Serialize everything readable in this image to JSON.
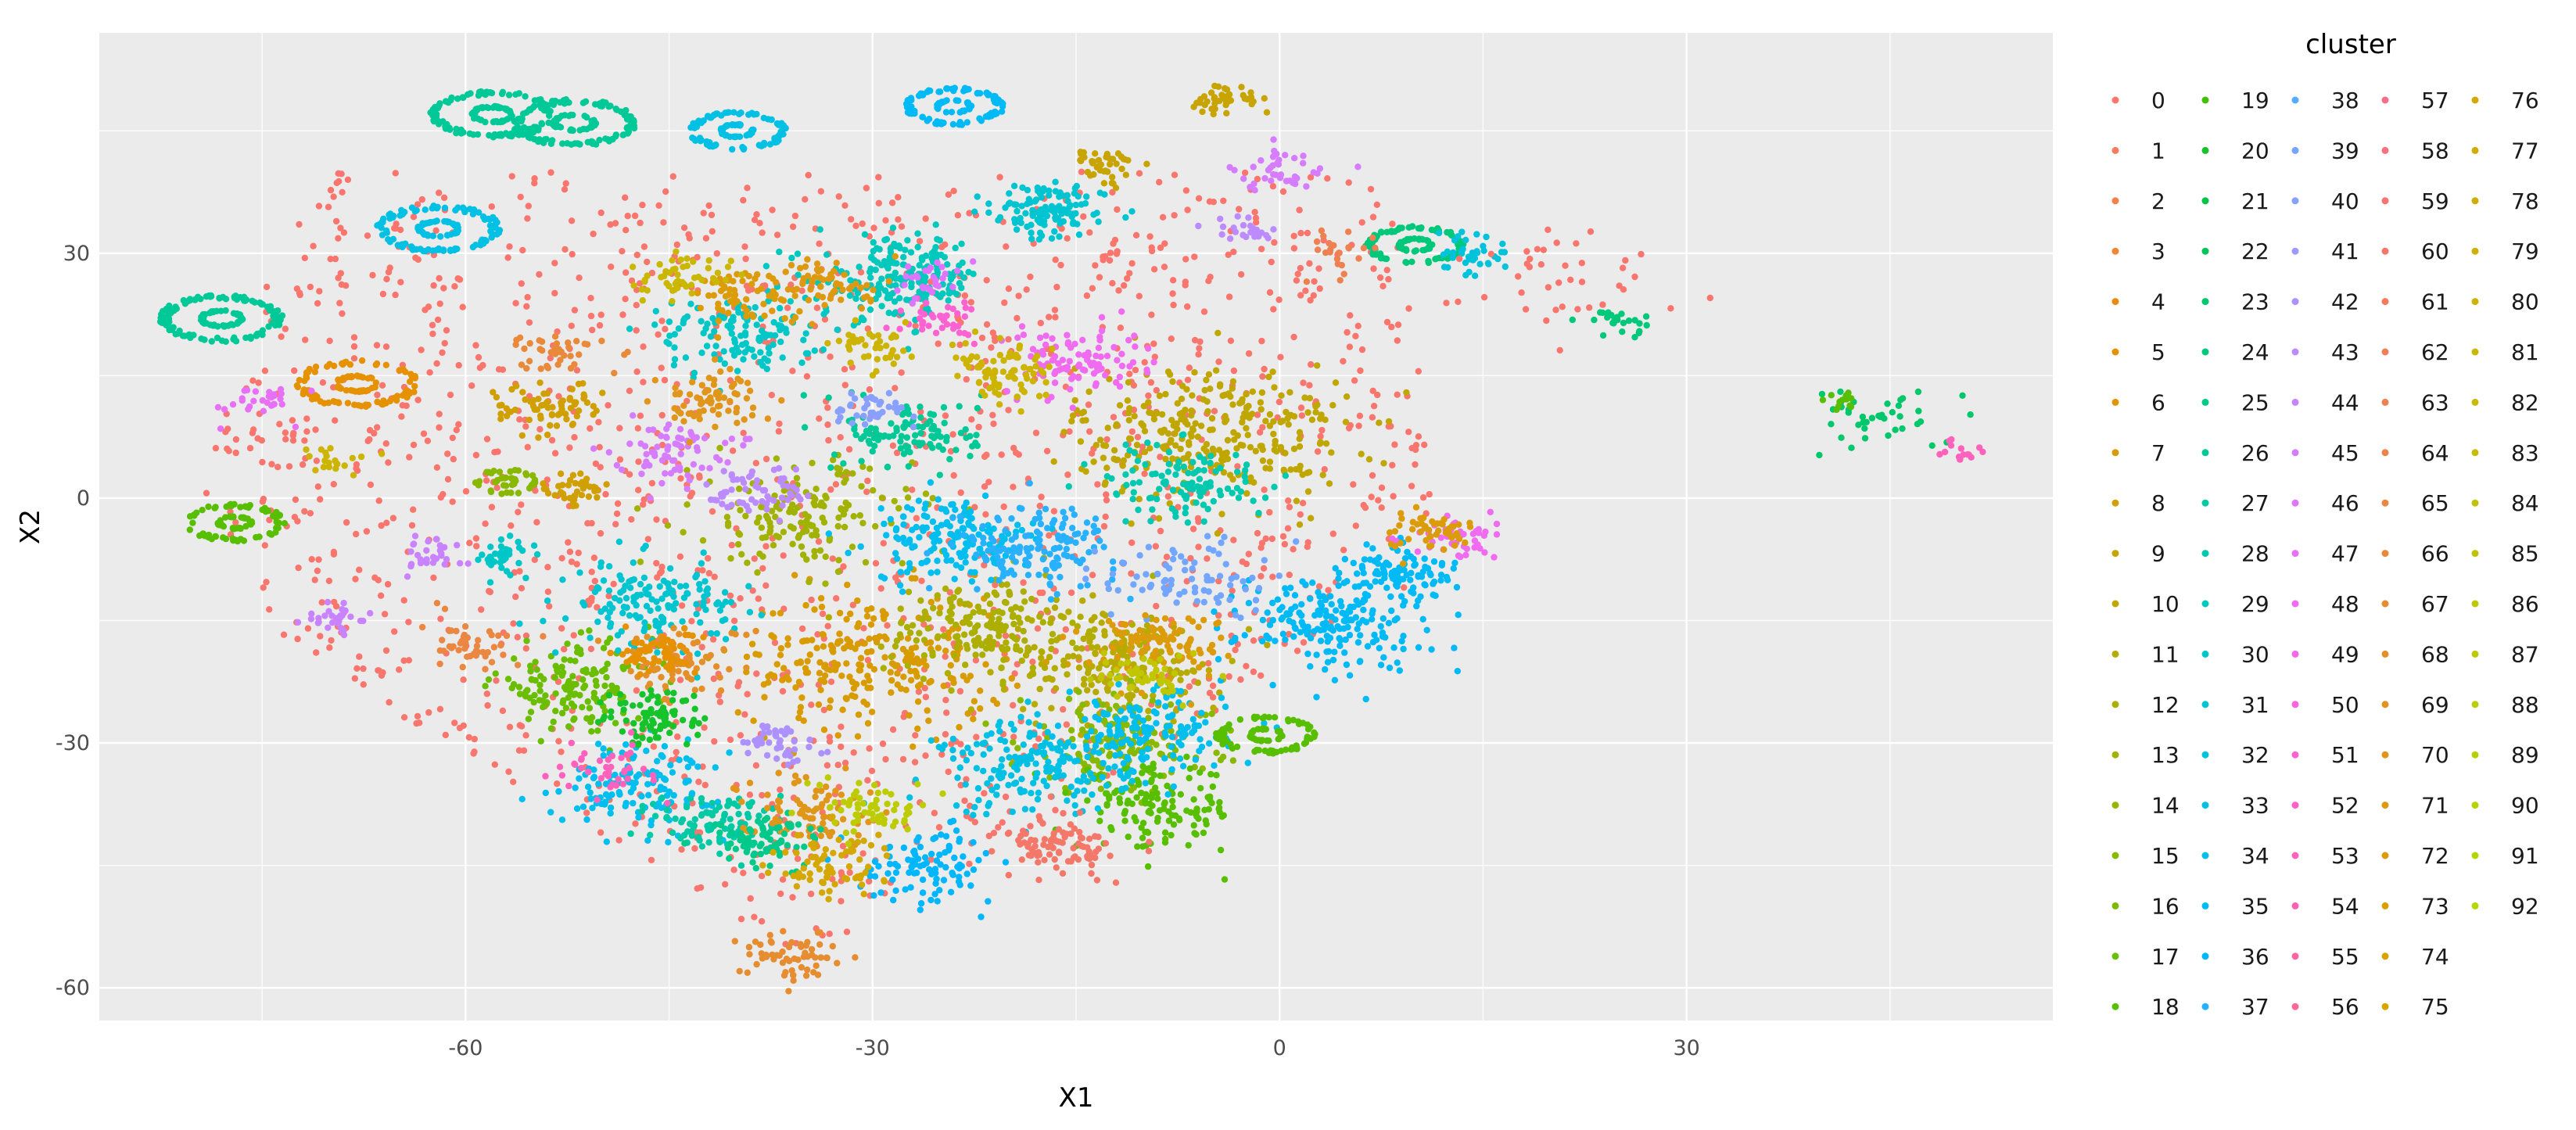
{
  "chart_data": {
    "type": "scatter",
    "title": "",
    "xlabel": "X1",
    "ylabel": "X2",
    "xlim": [
      -87,
      57
    ],
    "ylim": [
      -64,
      57
    ],
    "x_ticks": [
      -60,
      -30,
      0,
      30
    ],
    "x_tick_labels": [
      "-60",
      "-30",
      "0",
      "30"
    ],
    "y_ticks": [
      -60,
      -30,
      0,
      30
    ],
    "y_tick_labels": [
      "-60",
      "-30",
      "0",
      "30"
    ],
    "grid": true,
    "background": "#ebebeb",
    "grid_color": "#ffffff",
    "legend": {
      "title": "cluster",
      "placement": "right",
      "columns": 5,
      "entries": [
        "0",
        "1",
        "2",
        "3",
        "4",
        "5",
        "6",
        "7",
        "8",
        "9",
        "10",
        "11",
        "12",
        "13",
        "14",
        "15",
        "16",
        "17",
        "18",
        "19",
        "20",
        "21",
        "22",
        "23",
        "24",
        "25",
        "26",
        "27",
        "28",
        "29",
        "30",
        "31",
        "32",
        "33",
        "34",
        "35",
        "36",
        "37",
        "38",
        "39",
        "40",
        "41",
        "42",
        "43",
        "44",
        "45",
        "46",
        "47",
        "48",
        "49",
        "50",
        "51",
        "52",
        "53",
        "54",
        "55",
        "56",
        "57",
        "58",
        "59",
        "60",
        "61",
        "62",
        "63",
        "64",
        "65",
        "66",
        "67",
        "68",
        "69",
        "70",
        "71",
        "72",
        "73",
        "74",
        "75",
        "76",
        "77",
        "78",
        "79",
        "80",
        "81",
        "82",
        "83",
        "84",
        "85",
        "86",
        "87",
        "88",
        "89",
        "90",
        "91",
        "92"
      ],
      "colors": [
        "#F8766D",
        "#F67C5E",
        "#F3814C",
        "#EF8735",
        "#EA8C0F",
        "#E59100",
        "#DF9600",
        "#D89B00",
        "#D09F00",
        "#C8A400",
        "#BFA700",
        "#B6AB00",
        "#ACAE00",
        "#A1B200",
        "#96B500",
        "#89B800",
        "#7BBA00",
        "#6BBD00",
        "#58BF00",
        "#40C100",
        "#16C32B",
        "#00C546",
        "#00C65A",
        "#00C76B",
        "#00C87B",
        "#00C989",
        "#00C997",
        "#00C9A4",
        "#00C9B0",
        "#00C8BC",
        "#00C7C7",
        "#00C5D1",
        "#00C3DB",
        "#00C1E4",
        "#00BEED",
        "#00BAF5",
        "#00B6FC",
        "#28B1FF",
        "#55ACFF",
        "#72A6FF",
        "#89A0FF",
        "#9C99FF",
        "#AD92FF",
        "#BC8BFF",
        "#C983FF",
        "#D57CFF",
        "#DF75FD",
        "#E870F6",
        "#EF6BEF",
        "#F567E6",
        "#FA64DD",
        "#FD62D2",
        "#FF61C7",
        "#FF62BC",
        "#FF63B0",
        "#FE66A3",
        "#FB6996",
        "#F96D89",
        "#F8717C",
        "#F67572",
        "#F4786A",
        "#F27B62",
        "#F07E5A",
        "#EE8152",
        "#EC844A",
        "#EA8742",
        "#E88A3A",
        "#E68D32",
        "#E4902A",
        "#E29322",
        "#E0961A",
        "#DE9912",
        "#DC9C0A",
        "#DA9F02",
        "#D8A200",
        "#D6A500",
        "#D4A800",
        "#D2AB00",
        "#D0AE00",
        "#CEB100",
        "#CCB400",
        "#CAB700",
        "#C8BA00",
        "#C6BD00",
        "#C4C000",
        "#C2C300",
        "#C0C600",
        "#BEC900",
        "#BCCC00",
        "#BACF00",
        "#B8D200",
        "#B6D500",
        "#B4D800"
      ]
    },
    "clusters": [
      {
        "cluster": 0,
        "cx": -20,
        "cy": 0,
        "spread": 26,
        "n": 1500,
        "ring": false
      },
      {
        "cluster": 7,
        "cx": -30,
        "cy": -20,
        "spread": 5,
        "n": 260,
        "ring": false
      },
      {
        "cluster": 10,
        "cx": -5,
        "cy": 8,
        "spread": 5,
        "n": 300,
        "ring": false
      },
      {
        "cluster": 11,
        "cx": -12,
        "cy": -20,
        "spread": 4,
        "n": 200,
        "ring": false
      },
      {
        "cluster": 12,
        "cx": -22,
        "cy": -16,
        "spread": 3.5,
        "n": 170,
        "ring": false
      },
      {
        "cluster": 13,
        "cx": -35,
        "cy": -2,
        "spread": 4,
        "n": 160,
        "ring": false
      },
      {
        "cluster": 15,
        "cx": -12,
        "cy": -30,
        "spread": 3.5,
        "n": 160,
        "ring": false
      },
      {
        "cluster": 17,
        "cx": -52,
        "cy": -23,
        "spread": 3,
        "n": 140,
        "ring": false
      },
      {
        "cluster": 18,
        "cx": -9,
        "cy": -38,
        "spread": 3,
        "n": 140,
        "ring": false
      },
      {
        "cluster": 29,
        "cx": -28,
        "cy": 27,
        "spread": 3,
        "n": 200,
        "ring": false
      },
      {
        "cluster": 31,
        "cx": -46,
        "cy": -13,
        "spread": 3,
        "n": 150,
        "ring": false
      },
      {
        "cluster": 35,
        "cx": 4,
        "cy": -15,
        "spread": 3.5,
        "n": 200,
        "ring": false
      },
      {
        "cluster": 35,
        "cx": 9,
        "cy": -9,
        "spread": 2,
        "n": 90,
        "ring": false
      },
      {
        "cluster": 33,
        "cx": -18,
        "cy": -33,
        "spread": 3.5,
        "n": 180,
        "ring": false
      },
      {
        "cluster": 34,
        "cx": -10,
        "cy": -29,
        "spread": 3,
        "n": 140,
        "ring": false
      },
      {
        "cluster": 34,
        "cx": -24,
        "cy": -5,
        "spread": 3,
        "n": 160,
        "ring": false
      },
      {
        "cluster": 37,
        "cx": -18,
        "cy": -6,
        "spread": 3,
        "n": 140,
        "ring": false
      },
      {
        "cluster": 36,
        "cx": -26,
        "cy": -45,
        "spread": 2.5,
        "n": 100,
        "ring": false
      },
      {
        "cluster": 34,
        "cx": -47,
        "cy": -35,
        "spread": 3,
        "n": 140,
        "ring": false
      },
      {
        "cluster": 30,
        "cx": -40,
        "cy": 20,
        "spread": 3,
        "n": 130,
        "ring": false
      },
      {
        "cluster": 48,
        "cx": -15,
        "cy": 17,
        "spread": 2.5,
        "n": 100,
        "ring": false
      },
      {
        "cluster": 48,
        "cx": 13,
        "cy": -5,
        "spread": 1.5,
        "n": 50,
        "ring": false
      },
      {
        "cluster": 26,
        "cx": -27,
        "cy": 8,
        "spread": 2.5,
        "n": 110,
        "ring": false
      },
      {
        "cluster": 27,
        "cx": -41,
        "cy": -40,
        "spread": 2.5,
        "n": 100,
        "ring": false
      },
      {
        "cluster": 28,
        "cx": -7,
        "cy": 2,
        "spread": 3,
        "n": 110,
        "ring": false
      },
      {
        "cluster": 39,
        "cx": -7,
        "cy": -10,
        "spread": 3,
        "n": 80,
        "ring": false
      },
      {
        "cluster": 45,
        "cx": -45,
        "cy": 6,
        "spread": 2,
        "n": 70,
        "ring": false
      },
      {
        "cluster": 70,
        "cx": -35,
        "cy": -38,
        "spread": 2.5,
        "n": 80,
        "ring": false
      },
      {
        "cluster": 70,
        "cx": -42,
        "cy": 12,
        "spread": 2,
        "n": 70,
        "ring": false
      },
      {
        "cluster": 72,
        "cx": -40,
        "cy": 25,
        "spread": 2,
        "n": 60,
        "ring": false
      },
      {
        "cluster": 72,
        "cx": -9,
        "cy": -18,
        "spread": 2.5,
        "n": 100,
        "ring": false
      },
      {
        "cluster": 68,
        "cx": -44,
        "cy": -20,
        "spread": 2.5,
        "n": 70,
        "ring": false
      },
      {
        "cluster": 25,
        "cx": -38,
        "cy": -42,
        "spread": 2,
        "n": 70,
        "ring": false
      },
      {
        "cluster": 20,
        "cx": -46,
        "cy": -27,
        "spread": 2,
        "n": 80,
        "ring": false
      },
      {
        "cluster": 8,
        "cx": -54,
        "cy": 11,
        "spread": 2,
        "n": 70,
        "ring": false
      },
      {
        "cluster": 5,
        "cx": -46,
        "cy": -19,
        "spread": 1.5,
        "n": 60,
        "ring": false
      },
      {
        "cluster": 43,
        "cx": -38,
        "cy": 1,
        "spread": 2,
        "n": 60,
        "ring": false
      },
      {
        "cluster": 71,
        "cx": -33,
        "cy": 26,
        "spread": 2,
        "n": 60,
        "ring": false
      },
      {
        "cluster": 76,
        "cx": -33,
        "cy": -45,
        "spread": 2.5,
        "n": 70,
        "ring": false
      },
      {
        "cluster": 88,
        "cx": -30,
        "cy": -38,
        "spread": 2,
        "n": 60,
        "ring": false
      },
      {
        "cluster": 60,
        "cx": -16,
        "cy": -43,
        "spread": 2,
        "n": 90,
        "ring": false
      },
      {
        "cluster": 42,
        "cx": -37,
        "cy": -30,
        "spread": 1.5,
        "n": 45,
        "ring": false
      },
      {
        "cluster": 65,
        "cx": -60,
        "cy": -18,
        "spread": 1.8,
        "n": 45,
        "ring": false
      },
      {
        "cluster": 66,
        "cx": -53,
        "cy": 18,
        "spread": 1.5,
        "n": 40,
        "ring": false
      },
      {
        "cluster": 67,
        "cx": -36,
        "cy": -56,
        "spread": 1.8,
        "n": 60,
        "ring": false
      },
      {
        "cluster": 51,
        "cx": -25,
        "cy": 22,
        "spread": 1.5,
        "n": 40,
        "ring": false
      },
      {
        "cluster": 53,
        "cx": -50,
        "cy": -33,
        "spread": 1.8,
        "n": 40,
        "ring": false
      },
      {
        "cluster": 80,
        "cx": -20,
        "cy": 15,
        "spread": 2,
        "n": 80,
        "ring": false
      },
      {
        "cluster": 80,
        "cx": -30,
        "cy": 18,
        "spread": 1.5,
        "n": 40,
        "ring": false
      },
      {
        "cluster": 81,
        "cx": -44,
        "cy": 27,
        "spread": 1.8,
        "n": 50,
        "ring": false
      },
      {
        "cluster": 40,
        "cx": -30,
        "cy": 11,
        "spread": 1.5,
        "n": 40,
        "ring": false
      },
      {
        "cluster": 46,
        "cx": -26,
        "cy": 27,
        "spread": 1.2,
        "n": 30,
        "ring": false
      },
      {
        "cluster": 44,
        "cx": -70,
        "cy": -15,
        "spread": 1.2,
        "n": 30,
        "ring": false
      },
      {
        "cluster": 44,
        "cx": -62,
        "cy": -7,
        "spread": 1.2,
        "n": 30,
        "ring": false
      },
      {
        "cluster": 86,
        "cx": -10,
        "cy": -22,
        "spread": 1.8,
        "n": 50,
        "ring": false
      },
      {
        "cluster": 24,
        "cx": 10,
        "cy": 31,
        "spread": 2,
        "n": 110,
        "ring": true
      },
      {
        "cluster": 30,
        "cx": -57,
        "cy": -7,
        "spread": 1.2,
        "n": 40,
        "ring": false
      },
      {
        "cluster": 26,
        "cx": -58,
        "cy": 47,
        "spread": 2.5,
        "n": 160,
        "ring": true
      },
      {
        "cluster": 26,
        "cx": -52,
        "cy": 46,
        "spread": 2.5,
        "n": 160,
        "ring": true
      },
      {
        "cluster": 26,
        "cx": -78,
        "cy": 22,
        "spread": 2.5,
        "n": 160,
        "ring": true
      },
      {
        "cluster": 33,
        "cx": -62,
        "cy": 33,
        "spread": 2.5,
        "n": 150,
        "ring": true
      },
      {
        "cluster": 33,
        "cx": -40,
        "cy": 45,
        "spread": 2,
        "n": 120,
        "ring": true
      },
      {
        "cluster": 35,
        "cx": -24,
        "cy": 48,
        "spread": 2,
        "n": 120,
        "ring": true
      },
      {
        "cluster": 31,
        "cx": -17,
        "cy": 35,
        "spread": 2,
        "n": 120,
        "ring": false
      },
      {
        "cluster": 5,
        "cx": -68,
        "cy": 14,
        "spread": 2.5,
        "n": 120,
        "ring": true
      },
      {
        "cluster": 9,
        "cx": -13,
        "cy": 41,
        "spread": 1.2,
        "n": 40,
        "ring": false
      },
      {
        "cluster": 9,
        "cx": -4,
        "cy": 49,
        "spread": 1.2,
        "n": 40,
        "ring": false
      },
      {
        "cluster": 15,
        "cx": -57,
        "cy": 2,
        "spread": 1.3,
        "n": 50,
        "ring": true
      },
      {
        "cluster": 8,
        "cx": -52,
        "cy": 1,
        "spread": 1.2,
        "n": 40,
        "ring": false
      },
      {
        "cluster": 18,
        "cx": -77,
        "cy": -3,
        "spread": 2,
        "n": 100,
        "ring": true
      },
      {
        "cluster": 18,
        "cx": -1,
        "cy": -29,
        "spread": 2,
        "n": 100,
        "ring": true
      },
      {
        "cluster": 32,
        "cx": 14,
        "cy": 30,
        "spread": 1.5,
        "n": 40,
        "ring": false
      },
      {
        "cluster": 45,
        "cx": 0,
        "cy": 40,
        "spread": 1.5,
        "n": 40,
        "ring": false
      },
      {
        "cluster": 43,
        "cx": -3,
        "cy": 33,
        "spread": 1.2,
        "n": 25,
        "ring": false
      },
      {
        "cluster": 63,
        "cx": 4,
        "cy": 30,
        "spread": 1.5,
        "n": 25,
        "ring": false
      },
      {
        "cluster": 47,
        "cx": -75,
        "cy": 12,
        "spread": 1.5,
        "n": 30,
        "ring": false
      },
      {
        "cluster": 72,
        "cx": 11,
        "cy": -4,
        "spread": 1.5,
        "n": 50,
        "ring": false
      },
      {
        "cluster": 80,
        "cx": -70,
        "cy": 5,
        "spread": 1.2,
        "n": 20,
        "ring": false
      },
      {
        "cluster": 24,
        "cx": 25,
        "cy": 22,
        "spread": 1.2,
        "n": 25,
        "ring": false
      },
      {
        "cluster": 0,
        "cx": 20,
        "cy": 28,
        "spread": 4,
        "n": 40,
        "ring": false
      },
      {
        "cluster": 23,
        "cx": 44,
        "cy": 10,
        "spread": 2.5,
        "n": 40,
        "ring": false
      },
      {
        "cluster": 53,
        "cx": 50,
        "cy": 6,
        "spread": 1,
        "n": 15,
        "ring": false
      },
      {
        "cluster": 18,
        "cx": 41,
        "cy": 12,
        "spread": 0.6,
        "n": 15,
        "ring": false
      }
    ]
  }
}
